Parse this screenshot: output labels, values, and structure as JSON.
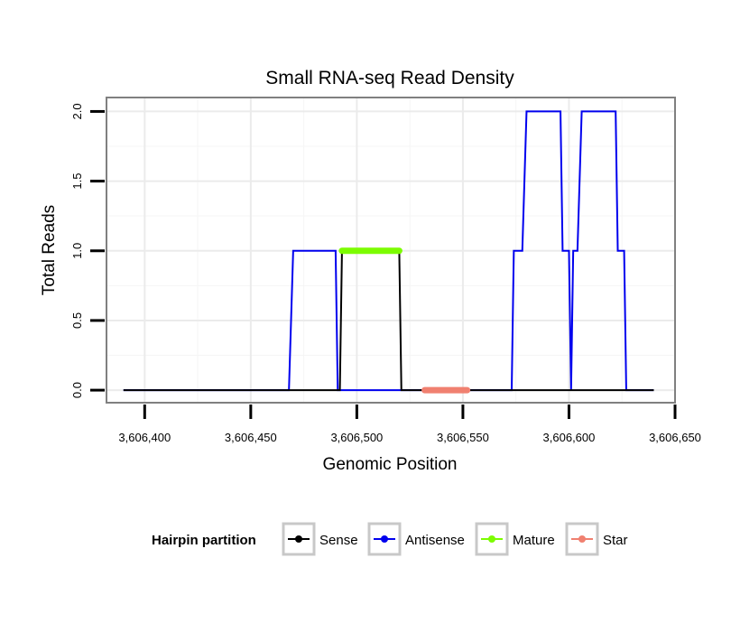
{
  "chart_data": {
    "type": "line",
    "title": "Small RNA-seq Read Density",
    "xlabel": "Genomic Position",
    "ylabel": "Total Reads",
    "xlim": [
      3606382,
      3606650
    ],
    "ylim": [
      -0.09,
      2.1
    ],
    "x_ticks": [
      3606400,
      3606450,
      3606500,
      3606550,
      3606600,
      3606650
    ],
    "x_tick_labels": [
      "3,606,400",
      "3,606,450",
      "3,606,500",
      "3,606,550",
      "3,606,600",
      "3,606,650"
    ],
    "y_ticks": [
      0,
      0.5,
      1,
      1.5,
      2
    ],
    "y_tick_labels": [
      "0.0",
      "0.5",
      "1.0",
      "1.5",
      "2.0"
    ],
    "grid": true,
    "legend_title": "Hairpin partition",
    "legend_position": "bottom",
    "series": [
      {
        "name": "Sense",
        "color": "#000000",
        "width": "thin",
        "x": [
          3606390,
          3606492,
          3606493,
          3606520,
          3606521,
          3606640
        ],
        "y": [
          0,
          0,
          1,
          1,
          0,
          0
        ]
      },
      {
        "name": "Antisense",
        "color": "#0000ee",
        "width": "thin",
        "x": [
          3606390,
          3606468,
          3606470,
          3606490,
          3606491,
          3606573,
          3606574,
          3606578,
          3606580,
          3606596,
          3606597,
          3606600,
          3606601,
          3606602,
          3606604,
          3606606,
          3606622,
          3606623,
          3606626,
          3606627,
          3606640
        ],
        "y": [
          0,
          0,
          1,
          1,
          0,
          0,
          1,
          1,
          2,
          2,
          1,
          1,
          0,
          1,
          1,
          2,
          2,
          1,
          1,
          0,
          0
        ]
      },
      {
        "name": "Mature",
        "color": "#7cfc00",
        "width": "thick",
        "x": [
          3606493,
          3606520
        ],
        "y": [
          1,
          1
        ]
      },
      {
        "name": "Star",
        "color": "#f08070",
        "width": "thick",
        "x": [
          3606532,
          3606552
        ],
        "y": [
          0,
          0
        ]
      }
    ]
  }
}
